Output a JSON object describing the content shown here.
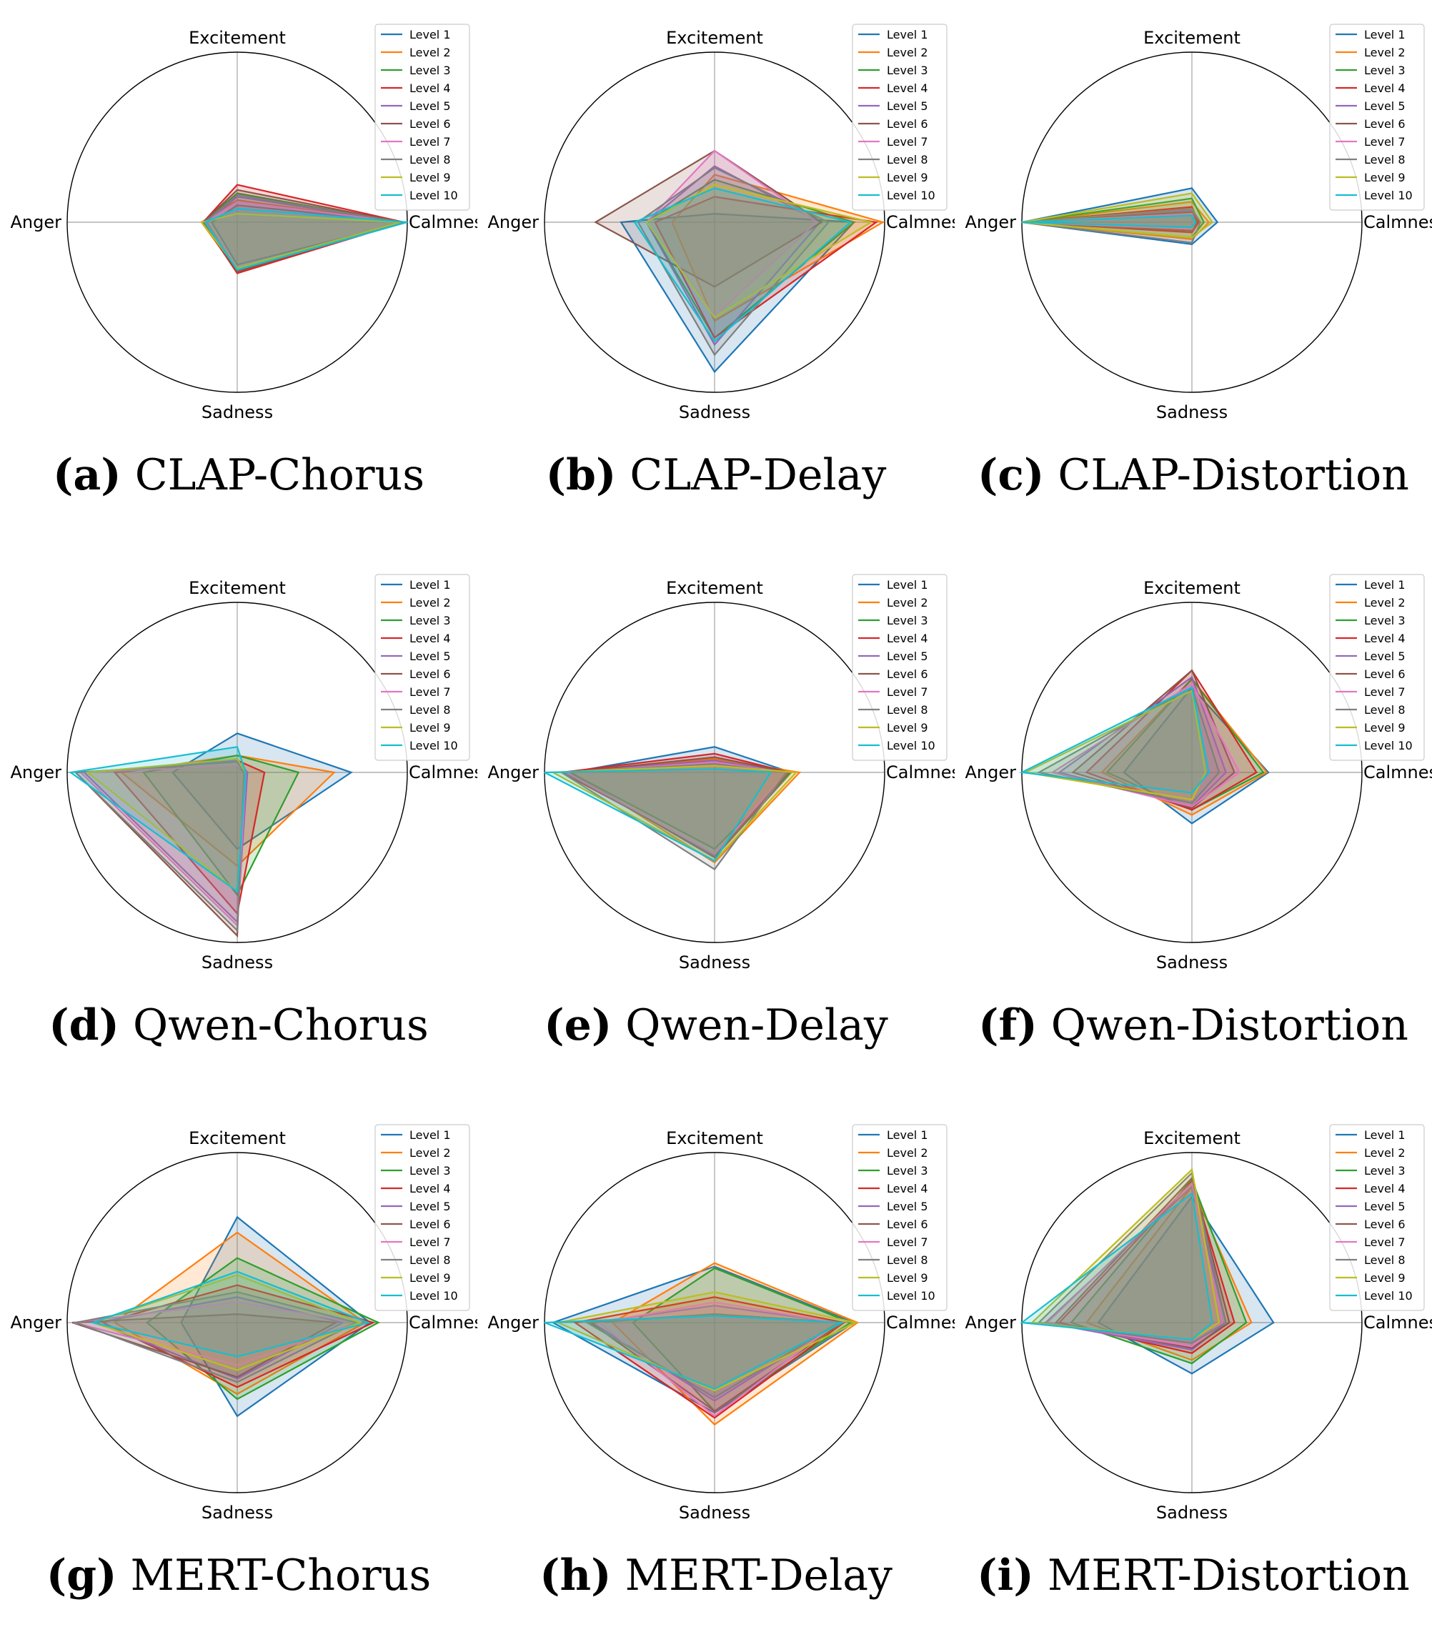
{
  "legend_labels": [
    "Level 1",
    "Level 2",
    "Level 3",
    "Level 4",
    "Level 5",
    "Level 6",
    "Level 7",
    "Level 8",
    "Level 9",
    "Level 10"
  ],
  "level_colors": [
    "#1f77b4",
    "#ff7f0e",
    "#2ca02c",
    "#d62728",
    "#9467bd",
    "#8c564b",
    "#e377c2",
    "#7f7f7f",
    "#bcbd22",
    "#17becf"
  ],
  "chart_data": [
    {
      "type": "radar",
      "caption_letter": "(a)",
      "caption_text": "CLAP-Chorus",
      "axes": [
        "Excitement",
        "Calmness",
        "Sadness",
        "Anger"
      ],
      "rlim": [
        0,
        1
      ],
      "series": [
        {
          "name": "Level 1",
          "values": [
            0.1,
            0.99,
            0.25,
            0.15
          ]
        },
        {
          "name": "Level 2",
          "values": [
            0.13,
            0.97,
            0.29,
            0.21
          ]
        },
        {
          "name": "Level 3",
          "values": [
            0.17,
            0.96,
            0.3,
            0.2
          ]
        },
        {
          "name": "Level 4",
          "values": [
            0.22,
            0.98,
            0.3,
            0.2
          ]
        },
        {
          "name": "Level 5",
          "values": [
            0.15,
            0.97,
            0.28,
            0.18
          ]
        },
        {
          "name": "Level 6",
          "values": [
            0.19,
            0.97,
            0.29,
            0.2
          ]
        },
        {
          "name": "Level 7",
          "values": [
            0.12,
            0.97,
            0.27,
            0.19
          ]
        },
        {
          "name": "Level 8",
          "values": [
            0.16,
            0.97,
            0.28,
            0.19
          ]
        },
        {
          "name": "Level 9",
          "values": [
            0.05,
            0.96,
            0.27,
            0.21
          ]
        },
        {
          "name": "Level 10",
          "values": [
            0.08,
            1.0,
            0.28,
            0.19
          ]
        }
      ]
    },
    {
      "type": "radar",
      "caption_letter": "(b)",
      "caption_text": "CLAP-Delay",
      "axes": [
        "Excitement",
        "Calmness",
        "Sadness",
        "Anger"
      ],
      "rlim": [
        0,
        1
      ],
      "series": [
        {
          "name": "Level 1",
          "values": [
            0.05,
            0.82,
            0.88,
            0.55
          ]
        },
        {
          "name": "Level 2",
          "values": [
            0.28,
            0.99,
            0.58,
            0.25
          ]
        },
        {
          "name": "Level 3",
          "values": [
            0.25,
            0.82,
            0.68,
            0.4
          ]
        },
        {
          "name": "Level 4",
          "values": [
            0.15,
            0.95,
            0.68,
            0.35
          ]
        },
        {
          "name": "Level 5",
          "values": [
            0.33,
            0.62,
            0.72,
            0.4
          ]
        },
        {
          "name": "Level 6",
          "values": [
            0.42,
            0.63,
            0.38,
            0.7
          ]
        },
        {
          "name": "Level 7",
          "values": [
            0.42,
            0.6,
            0.55,
            0.4
          ]
        },
        {
          "name": "Level 8",
          "values": [
            0.32,
            0.67,
            0.78,
            0.45
          ]
        },
        {
          "name": "Level 9",
          "values": [
            0.22,
            0.92,
            0.56,
            0.4
          ]
        },
        {
          "name": "Level 10",
          "values": [
            0.2,
            0.8,
            0.7,
            0.47
          ]
        }
      ]
    },
    {
      "type": "radar",
      "caption_letter": "(c)",
      "caption_text": "CLAP-Distortion",
      "axes": [
        "Excitement",
        "Calmness",
        "Sadness",
        "Anger"
      ],
      "rlim": [
        0,
        1
      ],
      "series": [
        {
          "name": "Level 1",
          "values": [
            0.2,
            0.15,
            0.13,
            1.0
          ]
        },
        {
          "name": "Level 2",
          "values": [
            0.12,
            0.1,
            0.1,
            1.0
          ]
        },
        {
          "name": "Level 3",
          "values": [
            0.14,
            0.07,
            0.09,
            1.0
          ]
        },
        {
          "name": "Level 4",
          "values": [
            0.09,
            0.04,
            0.06,
            1.0
          ]
        },
        {
          "name": "Level 5",
          "values": [
            0.07,
            0.03,
            0.05,
            1.0
          ]
        },
        {
          "name": "Level 6",
          "values": [
            0.06,
            0.03,
            0.05,
            1.0
          ]
        },
        {
          "name": "Level 7",
          "values": [
            0.05,
            0.02,
            0.04,
            1.0
          ]
        },
        {
          "name": "Level 8",
          "values": [
            0.08,
            0.05,
            0.12,
            1.0
          ]
        },
        {
          "name": "Level 9",
          "values": [
            0.17,
            0.12,
            0.09,
            1.0
          ]
        },
        {
          "name": "Level 10",
          "values": [
            0.04,
            0.02,
            0.03,
            1.0
          ]
        }
      ]
    },
    {
      "type": "radar",
      "caption_letter": "(d)",
      "caption_text": "Qwen-Chorus",
      "axes": [
        "Excitement",
        "Calmness",
        "Sadness",
        "Anger"
      ],
      "rlim": [
        0,
        1
      ],
      "series": [
        {
          "name": "Level 1",
          "values": [
            0.23,
            0.67,
            0.45,
            0.38
          ]
        },
        {
          "name": "Level 2",
          "values": [
            0.1,
            0.57,
            0.55,
            0.68
          ]
        },
        {
          "name": "Level 3",
          "values": [
            0.1,
            0.36,
            0.72,
            0.55
          ]
        },
        {
          "name": "Level 4",
          "values": [
            0.07,
            0.16,
            0.83,
            0.72
          ]
        },
        {
          "name": "Level 5",
          "values": [
            0.07,
            0.06,
            0.88,
            0.9
          ]
        },
        {
          "name": "Level 6",
          "values": [
            0.04,
            0.04,
            0.96,
            0.95
          ]
        },
        {
          "name": "Level 7",
          "values": [
            0.04,
            0.05,
            0.9,
            0.92
          ]
        },
        {
          "name": "Level 8",
          "values": [
            0.06,
            0.04,
            0.93,
            0.95
          ]
        },
        {
          "name": "Level 9",
          "values": [
            0.08,
            0.05,
            0.7,
            0.88
          ]
        },
        {
          "name": "Level 10",
          "values": [
            0.15,
            0.05,
            0.7,
            0.98
          ]
        }
      ]
    },
    {
      "type": "radar",
      "caption_letter": "(e)",
      "caption_text": "Qwen-Delay",
      "axes": [
        "Excitement",
        "Calmness",
        "Sadness",
        "Anger"
      ],
      "rlim": [
        0,
        1
      ],
      "series": [
        {
          "name": "Level 1",
          "values": [
            0.15,
            0.45,
            0.5,
            0.85
          ]
        },
        {
          "name": "Level 2",
          "values": [
            0.08,
            0.5,
            0.53,
            0.84
          ]
        },
        {
          "name": "Level 3",
          "values": [
            0.06,
            0.45,
            0.45,
            0.85
          ]
        },
        {
          "name": "Level 4",
          "values": [
            0.11,
            0.44,
            0.48,
            0.9
          ]
        },
        {
          "name": "Level 5",
          "values": [
            0.07,
            0.43,
            0.49,
            0.88
          ]
        },
        {
          "name": "Level 6",
          "values": [
            0.09,
            0.44,
            0.5,
            0.86
          ]
        },
        {
          "name": "Level 7",
          "values": [
            0.06,
            0.42,
            0.48,
            0.87
          ]
        },
        {
          "name": "Level 8",
          "values": [
            0.05,
            0.42,
            0.57,
            0.9
          ]
        },
        {
          "name": "Level 9",
          "values": [
            0.04,
            0.48,
            0.52,
            0.95
          ]
        },
        {
          "name": "Level 10",
          "values": [
            0.02,
            0.33,
            0.52,
            1.0
          ]
        }
      ]
    },
    {
      "type": "radar",
      "caption_letter": "(f)",
      "caption_text": "Qwen-Distortion",
      "axes": [
        "Excitement",
        "Calmness",
        "Sadness",
        "Anger"
      ],
      "rlim": [
        0,
        1
      ],
      "series": [
        {
          "name": "Level 1",
          "values": [
            0.5,
            0.45,
            0.3,
            0.4
          ]
        },
        {
          "name": "Level 2",
          "values": [
            0.55,
            0.44,
            0.25,
            0.53
          ]
        },
        {
          "name": "Level 3",
          "values": [
            0.55,
            0.42,
            0.22,
            0.5
          ]
        },
        {
          "name": "Level 4",
          "values": [
            0.6,
            0.38,
            0.22,
            0.62
          ]
        },
        {
          "name": "Level 5",
          "values": [
            0.56,
            0.2,
            0.2,
            0.78
          ]
        },
        {
          "name": "Level 6",
          "values": [
            0.6,
            0.25,
            0.21,
            0.7
          ]
        },
        {
          "name": "Level 7",
          "values": [
            0.52,
            0.28,
            0.2,
            0.82
          ]
        },
        {
          "name": "Level 8",
          "values": [
            0.5,
            0.16,
            0.18,
            0.9
          ]
        },
        {
          "name": "Level 9",
          "values": [
            0.48,
            0.08,
            0.16,
            0.98
          ]
        },
        {
          "name": "Level 10",
          "values": [
            0.5,
            0.1,
            0.12,
            1.0
          ]
        }
      ]
    },
    {
      "type": "radar",
      "caption_letter": "(g)",
      "caption_text": "MERT-Chorus",
      "axes": [
        "Excitement",
        "Calmness",
        "Sadness",
        "Anger"
      ],
      "rlim": [
        0,
        1
      ],
      "series": [
        {
          "name": "Level 1",
          "values": [
            0.62,
            0.78,
            0.55,
            0.33
          ]
        },
        {
          "name": "Level 2",
          "values": [
            0.53,
            0.75,
            0.42,
            0.72
          ]
        },
        {
          "name": "Level 3",
          "values": [
            0.38,
            0.83,
            0.45,
            0.53
          ]
        },
        {
          "name": "Level 4",
          "values": [
            0.22,
            0.8,
            0.38,
            0.79
          ]
        },
        {
          "name": "Level 5",
          "values": [
            0.15,
            0.62,
            0.33,
            0.83
          ]
        },
        {
          "name": "Level 6",
          "values": [
            0.05,
            0.58,
            0.32,
            0.97
          ]
        },
        {
          "name": "Level 7",
          "values": [
            0.12,
            0.7,
            0.25,
            0.96
          ]
        },
        {
          "name": "Level 8",
          "values": [
            0.18,
            0.7,
            0.35,
            0.95
          ]
        },
        {
          "name": "Level 9",
          "values": [
            0.28,
            0.72,
            0.28,
            0.85
          ]
        },
        {
          "name": "Level 10",
          "values": [
            0.3,
            0.77,
            0.2,
            0.85
          ]
        }
      ]
    },
    {
      "type": "radar",
      "caption_letter": "(h)",
      "caption_text": "MERT-Delay",
      "axes": [
        "Excitement",
        "Calmness",
        "Sadness",
        "Anger"
      ],
      "rlim": [
        0,
        1
      ],
      "series": [
        {
          "name": "Level 1",
          "values": [
            0.33,
            0.82,
            0.53,
            0.95
          ]
        },
        {
          "name": "Level 2",
          "values": [
            0.35,
            0.84,
            0.6,
            0.6
          ]
        },
        {
          "name": "Level 3",
          "values": [
            0.32,
            0.8,
            0.52,
            0.48
          ]
        },
        {
          "name": "Level 4",
          "values": [
            0.15,
            0.76,
            0.56,
            0.82
          ]
        },
        {
          "name": "Level 5",
          "values": [
            0.1,
            0.73,
            0.46,
            0.72
          ]
        },
        {
          "name": "Level 6",
          "values": [
            0.05,
            0.75,
            0.52,
            0.73
          ]
        },
        {
          "name": "Level 7",
          "values": [
            0.12,
            0.72,
            0.55,
            0.68
          ]
        },
        {
          "name": "Level 8",
          "values": [
            0.05,
            0.73,
            0.44,
            0.75
          ]
        },
        {
          "name": "Level 9",
          "values": [
            0.18,
            0.83,
            0.4,
            0.92
          ]
        },
        {
          "name": "Level 10",
          "values": [
            0.04,
            0.75,
            0.39,
            1.0
          ]
        }
      ]
    },
    {
      "type": "radar",
      "caption_letter": "(i)",
      "caption_text": "MERT-Distortion",
      "axes": [
        "Excitement",
        "Calmness",
        "Sadness",
        "Anger"
      ],
      "rlim": [
        0,
        1
      ],
      "series": [
        {
          "name": "Level 1",
          "values": [
            0.74,
            0.48,
            0.3,
            0.55
          ]
        },
        {
          "name": "Level 2",
          "values": [
            0.8,
            0.35,
            0.22,
            0.62
          ]
        },
        {
          "name": "Level 3",
          "values": [
            0.84,
            0.32,
            0.24,
            0.71
          ]
        },
        {
          "name": "Level 4",
          "values": [
            0.83,
            0.25,
            0.18,
            0.78
          ]
        },
        {
          "name": "Level 5",
          "values": [
            0.8,
            0.2,
            0.16,
            0.86
          ]
        },
        {
          "name": "Level 6",
          "values": [
            0.85,
            0.22,
            0.15,
            0.8
          ]
        },
        {
          "name": "Level 7",
          "values": [
            0.82,
            0.18,
            0.14,
            0.85
          ]
        },
        {
          "name": "Level 8",
          "values": [
            0.88,
            0.2,
            0.12,
            0.9
          ]
        },
        {
          "name": "Level 9",
          "values": [
            0.9,
            0.16,
            0.1,
            0.94
          ]
        },
        {
          "name": "Level 10",
          "values": [
            0.76,
            0.12,
            0.1,
            1.0
          ]
        }
      ]
    }
  ]
}
